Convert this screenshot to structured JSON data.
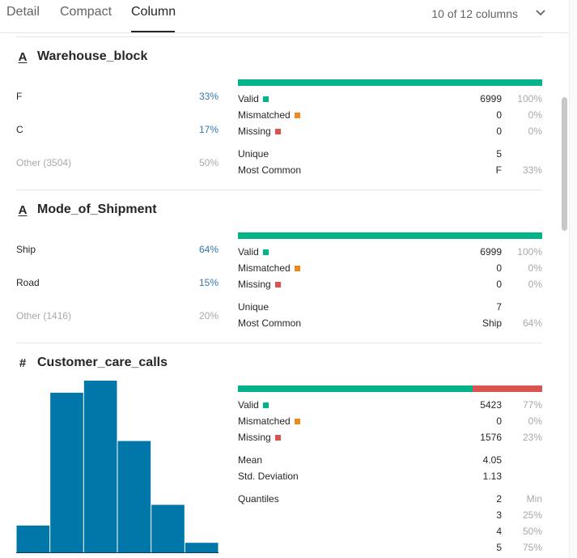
{
  "tabs": {
    "detail": "Detail",
    "compact": "Compact",
    "column": "Column"
  },
  "column_count": "10 of 12 columns",
  "colors": {
    "valid": "#00b388",
    "mismatched": "#f0891c",
    "missing": "#d9534f",
    "histogram": "#0077a8",
    "accent_pct": "#3377b0"
  },
  "sections": {
    "warehouse": {
      "name": "Warehouse_block",
      "type_icon": "A",
      "categories": [
        {
          "label": "F",
          "pct": "33%"
        },
        {
          "label": "C",
          "pct": "17%"
        },
        {
          "label": "Other (3504)",
          "pct": "50%"
        }
      ],
      "valid_fraction": 1.0,
      "stats": {
        "valid_label": "Valid",
        "valid_val": "6999",
        "valid_pct": "100%",
        "mismatched_label": "Mismatched",
        "mismatched_val": "0",
        "mismatched_pct": "0%",
        "missing_label": "Missing",
        "missing_val": "0",
        "missing_pct": "0%",
        "unique_label": "Unique",
        "unique_val": "5",
        "common_label": "Most Common",
        "common_val": "F",
        "common_pct": "33%"
      }
    },
    "shipment": {
      "name": "Mode_of_Shipment",
      "type_icon": "A",
      "categories": [
        {
          "label": "Ship",
          "pct": "64%"
        },
        {
          "label": "Road",
          "pct": "15%"
        },
        {
          "label": "Other (1416)",
          "pct": "20%"
        }
      ],
      "valid_fraction": 1.0,
      "stats": {
        "valid_label": "Valid",
        "valid_val": "6999",
        "valid_pct": "100%",
        "mismatched_label": "Mismatched",
        "mismatched_val": "0",
        "mismatched_pct": "0%",
        "missing_label": "Missing",
        "missing_val": "0",
        "missing_pct": "0%",
        "unique_label": "Unique",
        "unique_val": "7",
        "common_label": "Most Common",
        "common_val": "Ship",
        "common_pct": "64%"
      }
    },
    "calls": {
      "name": "Customer_care_calls",
      "type_icon": "#",
      "valid_fraction": 0.77,
      "stats": {
        "valid_label": "Valid",
        "valid_val": "5423",
        "valid_pct": "77%",
        "mismatched_label": "Mismatched",
        "mismatched_val": "0",
        "mismatched_pct": "0%",
        "missing_label": "Missing",
        "missing_val": "1576",
        "missing_pct": "23%",
        "mean_label": "Mean",
        "mean_val": "4.05",
        "std_label": "Std. Deviation",
        "std_val": "1.13",
        "quantiles_label": "Quantiles",
        "quantiles": [
          {
            "val": "2",
            "label": "Min"
          },
          {
            "val": "3",
            "label": "25%"
          },
          {
            "val": "4",
            "label": "50%"
          },
          {
            "val": "5",
            "label": "75%"
          }
        ]
      },
      "histogram": {
        "relative_heights": [
          0.16,
          0.93,
          1.0,
          0.65,
          0.28,
          0.06
        ]
      }
    }
  }
}
